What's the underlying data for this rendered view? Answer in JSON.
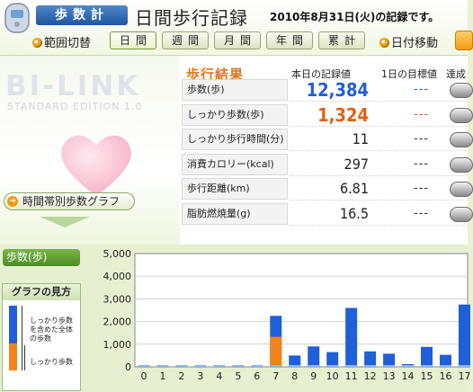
{
  "header": {
    "app_title": "歩数計",
    "page_title": "日間歩行記録",
    "record_date": "2010年8月31日(火)の記録です。",
    "range_label": "範囲切替",
    "range_buttons": [
      "日間",
      "週間",
      "月間",
      "年間",
      "累計"
    ],
    "active_range": "日間",
    "date_move_label": "日付移動"
  },
  "promo": {
    "logo": "BI-LINK",
    "logo_sub": "STANDARD EDITION 1.0",
    "hourly_graph_button": "時間帯別歩数グラフ"
  },
  "results": {
    "title": "歩行結果",
    "col_today": "本日の記録値",
    "col_target": "1日の目標値",
    "col_achieve": "達成",
    "rows": [
      {
        "label": "歩数(歩)",
        "value": "12,384",
        "target": "---",
        "color": "#1f5fd8",
        "big": true
      },
      {
        "label": "しっかり歩数(歩)",
        "value": "1,324",
        "target": "---",
        "color": "#e35f10",
        "big": true
      },
      {
        "label": "しっかり歩行時間(分)",
        "value": "11",
        "target": "---",
        "color": "#222222",
        "big": false
      },
      {
        "label": "消費カロリー(kcal)",
        "value": "297",
        "target": "---",
        "color": "#222222",
        "big": false
      },
      {
        "label": "歩行距離(km)",
        "value": "6.81",
        "target": "---",
        "color": "#222222",
        "big": false
      },
      {
        "label": "脂肪燃焼量(g)",
        "value": "16.5",
        "target": "---",
        "color": "#222222",
        "big": false
      }
    ],
    "target_colors": [
      "#1f5fd8",
      "#e35f10"
    ]
  },
  "graph": {
    "tab_label": "歩数(歩)",
    "legend_title": "グラフの見方",
    "legend_text_1": "しっかり歩数を含めた全体の歩数",
    "legend_text_2": "しっかり歩数"
  },
  "chart_data": {
    "type": "bar",
    "categories": [
      "0",
      "1",
      "2",
      "3",
      "4",
      "5",
      "6",
      "7",
      "8",
      "9",
      "10",
      "11",
      "12",
      "13",
      "14",
      "15",
      "16",
      "17"
    ],
    "series": [
      {
        "values": [
          0,
          0,
          0,
          0,
          0,
          0,
          0,
          2250,
          500,
          900,
          650,
          2600,
          680,
          580,
          120,
          880,
          530,
          2750
        ]
      },
      {
        "values": [
          0,
          0,
          0,
          0,
          0,
          0,
          0,
          1324,
          0,
          0,
          0,
          0,
          0,
          0,
          0,
          0,
          0,
          0
        ]
      }
    ],
    "ylim": [
      0,
      5000
    ],
    "yticks": [
      "0",
      "1,000",
      "2,000",
      "3,000",
      "4,000",
      "5,000"
    ],
    "grid": true,
    "colors": {
      "total": "#1f5fd8",
      "brisk": "#f08418",
      "baseline_marker": "#8fb3ea"
    }
  }
}
